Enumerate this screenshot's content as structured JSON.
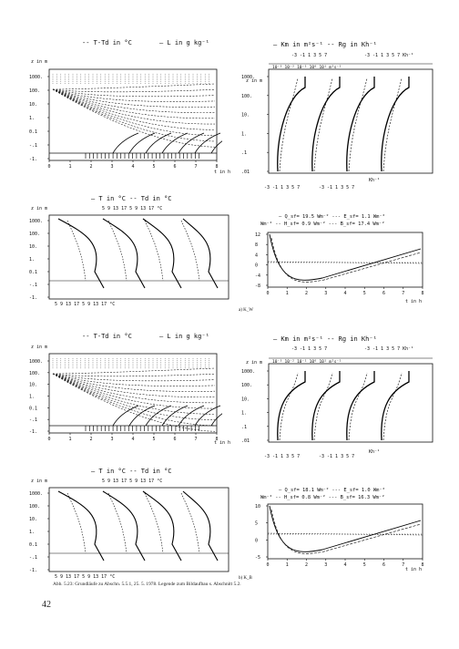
{
  "figure_a": {
    "panel1": {
      "title_left": "-- T-Td in °C",
      "title_right": "— L in g kg⁻¹",
      "ylabel": "z in m",
      "yticks": [
        "1000.",
        "100.",
        "10.",
        "1.",
        "0.1",
        "-.1",
        "-1."
      ],
      "xticks": [
        "0",
        "1",
        "2",
        "3",
        "4",
        "5",
        "6",
        "7",
        "8"
      ],
      "xlabel": "t in h"
    },
    "panel2": {
      "title": "— Km in m²s⁻¹  -- Rg in Kh⁻¹",
      "top_scale_left": "-3 -1 1 3 5 7",
      "top_scale_right": "-3 -1 1 3 5 7 Kh⁻¹",
      "exp_labels": "10⁻³  10⁻²  10⁻¹  10⁰  10¹ m²s⁻¹",
      "ylabel": "z in m",
      "yticks": [
        "1000.",
        "100.",
        "10.",
        "1.",
        ".1",
        ".01"
      ],
      "bottom_scale": "-3 -1 1 3 5 7",
      "bottom_unit": "Kh⁻¹"
    },
    "panel3": {
      "title": "— T in °C    -- Td in °C",
      "top_scale": "5   9   13   17      5   9   13   17   °C",
      "ylabel": "z in m",
      "yticks": [
        "1000.",
        "100.",
        "10.",
        "1.",
        "0.1",
        "-.1",
        "-1."
      ],
      "bottom_scale": "5   9   13   17   5   9   13   17   °C"
    },
    "panel4": {
      "legend_line1": "— Q_sf= 19.5 Wm⁻²   --- E_sf=  1.1 Wm⁻²",
      "legend_line2": "Wm⁻² -- H_sf=  0.9 Wm⁻²   --- B_sf= 17.4 Wm⁻²",
      "yticks": [
        "12",
        "8",
        "4",
        "0",
        "-4",
        "-8"
      ],
      "xticks": [
        "0",
        "1",
        "2",
        "3",
        "4",
        "5",
        "6",
        "7",
        "8"
      ],
      "xlabel": "t in h"
    },
    "tag": "a) K_W"
  },
  "figure_b": {
    "panel1": {
      "title_left": "-- T-Td in °C",
      "title_right": "— L in g kg⁻¹",
      "ylabel": "z in m",
      "yticks": [
        "1000.",
        "100.",
        "10.",
        "1.",
        "0.1",
        "-.1",
        "-1."
      ],
      "xticks": [
        "0",
        "1",
        "2",
        "3",
        "4",
        "5",
        "6",
        "7",
        "8"
      ],
      "xlabel": "t in h"
    },
    "panel2": {
      "title": "— Km in m²s⁻¹  -- Rg in Kh⁻¹",
      "top_scale_left": "-3 -1 1 3 5 7",
      "top_scale_right": "-3 -1 1 3 5 7 Kh⁻¹",
      "exp_labels": "10⁻³  10⁻²  10⁻¹  10⁰  10¹ m²s⁻¹",
      "ylabel": "z in m",
      "yticks": [
        "1000.",
        "100.",
        "10.",
        "1.",
        ".1",
        ".01"
      ],
      "bottom_scale": "-3 -1 1 3 5 7",
      "bottom_unit": "Kh⁻¹"
    },
    "panel3": {
      "title": "— T in °C    -- Td in °C",
      "top_scale": "5   9   13   17      5   9   13   17   °C",
      "ylabel": "z in m",
      "yticks": [
        "1000.",
        "100.",
        "10.",
        "1.",
        "0.1",
        "-.1",
        "-1."
      ],
      "bottom_scale": "5   9   13   17   5   9   13   17   °C"
    },
    "panel4": {
      "legend_line1": "— Q_sf= 18.1 Wm⁻²   --- E_sf=  1.0 Wm⁻²",
      "legend_line2": "Wm⁻² -- H_sf=  0.8 Wm⁻²   --- B_sf= 16.3 Wm⁻²",
      "yticks": [
        "10",
        "5",
        "0",
        "-5"
      ],
      "xticks": [
        "0",
        "1",
        "2",
        "3",
        "4",
        "5",
        "6",
        "7",
        "8"
      ],
      "xlabel": "t in h"
    },
    "tag": "b) K_B"
  },
  "caption": "Abb. 5.23: Grundläufe zu Abschn. 5.5.1, 25. 5. 1978. Legende zum Bildaufbau s. Abschnitt 5.2.",
  "page_number": "42"
}
